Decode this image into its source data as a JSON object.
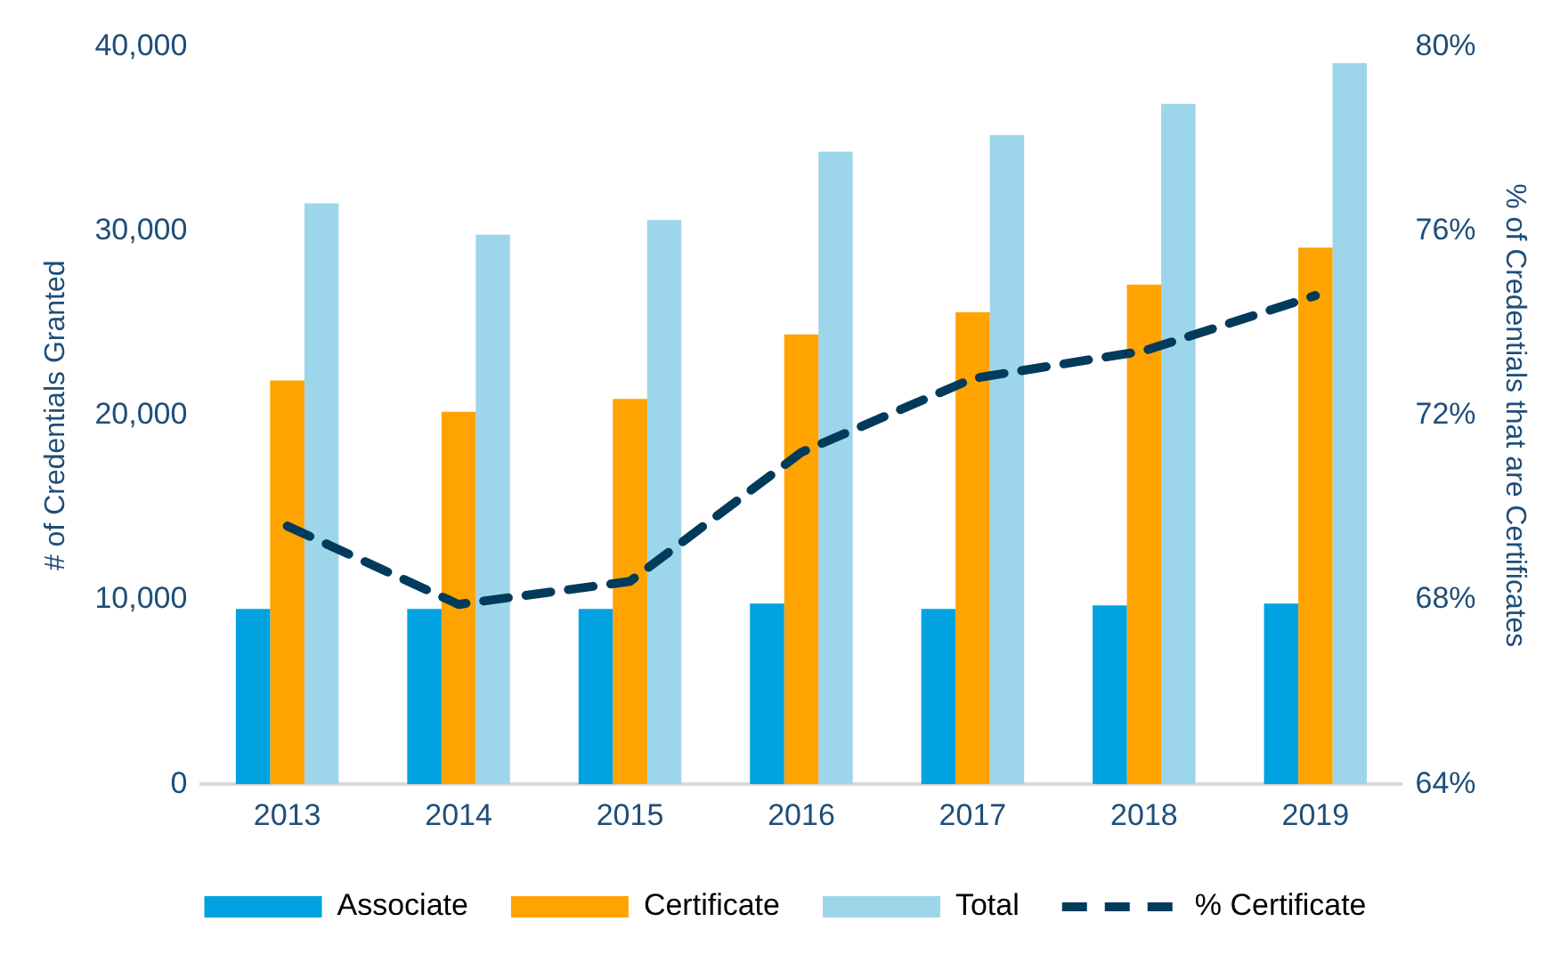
{
  "chart_data": {
    "type": "bar",
    "categories": [
      "2013",
      "2014",
      "2015",
      "2016",
      "2017",
      "2018",
      "2019"
    ],
    "series": [
      {
        "name": "Associate",
        "color": "#00a3e0",
        "values": [
          9500,
          9500,
          9500,
          9800,
          9500,
          9700,
          9800
        ]
      },
      {
        "name": "Certificate",
        "color": "#ffa300",
        "values": [
          21900,
          20200,
          20900,
          24400,
          25600,
          27100,
          29100
        ]
      },
      {
        "name": "Total",
        "color": "#9dd6ea",
        "values": [
          31500,
          29800,
          30600,
          34300,
          35200,
          36900,
          39100
        ]
      },
      {
        "name": "% Certificate",
        "type": "line",
        "axis": "y2",
        "color": "#003b5c",
        "line_style": "dashed",
        "marker": "none",
        "values": [
          69.6,
          67.9,
          68.4,
          71.2,
          72.8,
          73.4,
          74.6
        ]
      }
    ],
    "ylabel": "# of Credentials Granted",
    "y2label": "% of Credentials that are Certificates",
    "ylim": [
      0,
      40000
    ],
    "yticks": [
      0,
      {
        "value": 10000,
        "label": "10,000"
      },
      {
        "value": 20000,
        "label": "20,000"
      },
      {
        "value": 30000,
        "label": "30,000"
      },
      {
        "value": 40000,
        "label": "40,000"
      }
    ],
    "y2lim": [
      64,
      80
    ],
    "y2ticks": [
      {
        "value": 64,
        "label": "64%"
      },
      {
        "value": 68,
        "label": "68%"
      },
      {
        "value": 72,
        "label": "72%"
      },
      {
        "value": 76,
        "label": "76%"
      },
      {
        "value": 80,
        "label": "80%"
      }
    ],
    "grid": false,
    "legend": "bottom"
  }
}
